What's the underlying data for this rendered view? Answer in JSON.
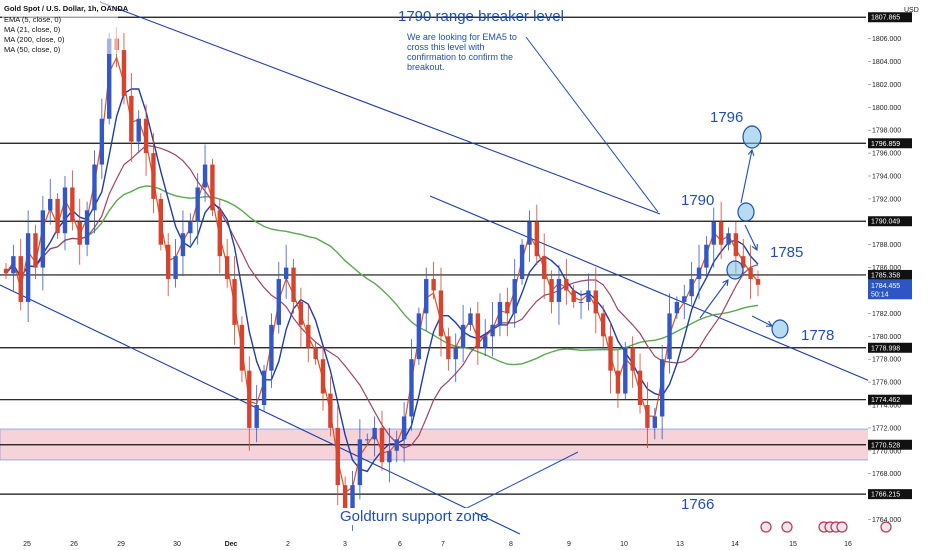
{
  "legend": {
    "title": "Gold Spot / U.S. Dollar, 1h, OANDA",
    "lines": [
      "EMA (5, close, 0)",
      "MA (21, close, 0)",
      "MA (200, close, 0)",
      "MA (50, close, 0)"
    ]
  },
  "currency_label": "USD",
  "colors": {
    "up": "#3457c8",
    "down": "#d6442f",
    "ema5": "#e0531f",
    "ma21": "#1d3ea8",
    "ma200": "#5aa84f",
    "ma50": "#a0426b",
    "annotation": "#1f4fb0",
    "hline": "#111111",
    "zone_fill": "#f6d3d8",
    "zone_stroke": "#8a9be0",
    "current_price_bg": "#2b56c4"
  },
  "chart_data": {
    "type": "candlestick",
    "title": "Gold Spot / U.S. Dollar, 1h, OANDA",
    "ylim": [
      1763,
      1808.5
    ],
    "y_ticks": [
      "1764.000",
      "1766.000",
      "1768.000",
      "1770.000",
      "1772.000",
      "1774.000",
      "1776.000",
      "1778.000",
      "1780.000",
      "1782.000",
      "1784.000",
      "1786.000",
      "1788.000",
      "1790.000",
      "1792.000",
      "1794.000",
      "1796.000",
      "1798.000",
      "1800.000",
      "1802.000",
      "1804.000",
      "1806.000"
    ],
    "x_ticks": [
      "25",
      "26",
      "29",
      "30",
      "Dec",
      "2",
      "3",
      "6",
      "7",
      "8",
      "9",
      "10",
      "13",
      "14",
      "15",
      "16"
    ],
    "price_levels": [
      {
        "label": "1807.865",
        "value": 1807.865
      },
      {
        "label": "1796.859",
        "value": 1796.859
      },
      {
        "label": "1790.049",
        "value": 1790.049
      },
      {
        "label": "1785.358",
        "value": 1785.358
      },
      {
        "label": "1778.998",
        "value": 1778.998
      },
      {
        "label": "1774.462",
        "value": 1774.462
      },
      {
        "label": "1770.528",
        "value": 1770.528
      },
      {
        "label": "1766.215",
        "value": 1766.215
      }
    ],
    "current_price": {
      "value": 1784.455,
      "label": "1784.455",
      "timer": "50:14"
    },
    "support_zone": {
      "from": 1769.2,
      "to": 1771.9,
      "label": "Goldturn support zone"
    },
    "annotations": {
      "headline": "1790 range breaker level",
      "note_lines": [
        "We are looking for EMA5 to",
        "cross this level with",
        "confirmation to confirm the",
        "breakout."
      ],
      "targets": [
        "1796",
        "1790",
        "1785",
        "1778",
        "1766"
      ]
    },
    "candles_close": [
      1785.5,
      1787,
      1783,
      1789,
      1786,
      1791,
      1792,
      1789,
      1793,
      1790,
      1788,
      1791,
      1795,
      1799,
      1806,
      1805,
      1801,
      1797,
      1799,
      1796,
      1792,
      1788,
      1785,
      1787,
      1789,
      1790,
      1793,
      1795,
      1791,
      1787,
      1785,
      1781,
      1777,
      1772,
      1774,
      1777,
      1781,
      1785,
      1786,
      1783,
      1781,
      1779,
      1778,
      1775,
      1772,
      1767,
      1765,
      1767,
      1771,
      1771,
      1772,
      1769,
      1770,
      1771,
      1773,
      1778,
      1782,
      1785,
      1784,
      1780,
      1778,
      1779,
      1781,
      1782,
      1779,
      1780,
      1781,
      1783,
      1782,
      1785,
      1788,
      1790,
      1787,
      1785,
      1783,
      1785,
      1784,
      1783,
      1783,
      1784,
      1782,
      1780,
      1777,
      1775,
      1779,
      1777,
      1774,
      1772,
      1773,
      1778,
      1782,
      1783,
      1783.5,
      1785,
      1786,
      1788,
      1790,
      1788,
      1789,
      1787,
      1786,
      1785,
      1784.5
    ]
  }
}
